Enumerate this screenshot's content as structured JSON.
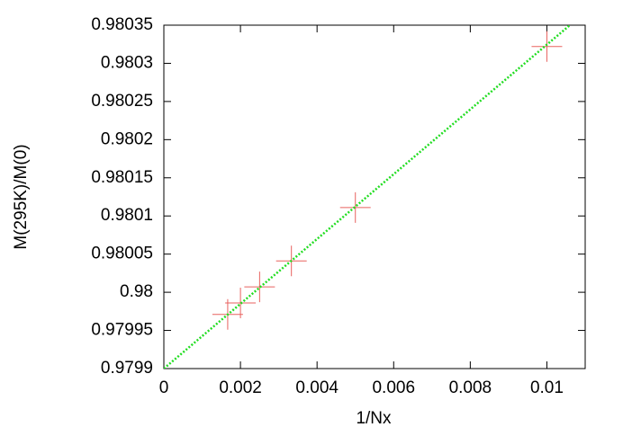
{
  "chart_data": {
    "type": "scatter",
    "xlabel": "1/Nx",
    "ylabel": "M(295K)/M(0)",
    "xlim": [
      0,
      0.011
    ],
    "xticks": [
      0,
      0.002,
      0.004,
      0.006,
      0.008,
      0.01
    ],
    "ylim": [
      0.9799,
      0.98035
    ],
    "yticks": [
      0.9799,
      0.97995,
      0.98,
      0.98005,
      0.9801,
      0.98015,
      0.9802,
      0.98025,
      0.9803,
      0.98035
    ],
    "series": [
      {
        "color": "#e8625f",
        "marker": "+",
        "x": [
          0.01,
          0.005,
          0.00333,
          0.0025,
          0.002,
          0.001667
        ],
        "values": [
          0.980322,
          0.980111,
          0.980041,
          0.980007,
          0.979986,
          0.979971
        ]
      },
      {
        "color": "#22dd22",
        "style": "dotted",
        "x": [
          0,
          0.0106
        ],
        "values": [
          0.9799,
          0.98035
        ]
      }
    ]
  }
}
